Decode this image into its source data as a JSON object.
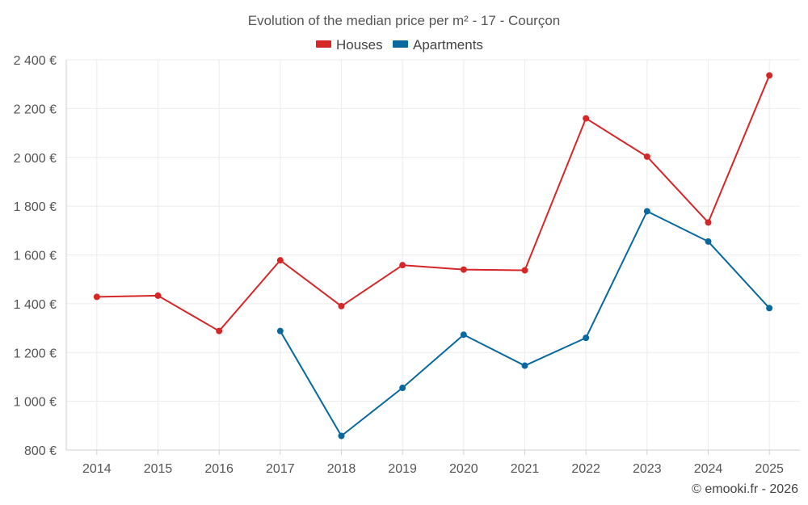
{
  "chart_data": {
    "type": "line",
    "title": "Evolution of the median price per m² - 17 - Courçon",
    "categories": [
      "2014",
      "2015",
      "2016",
      "2017",
      "2018",
      "2019",
      "2020",
      "2021",
      "2022",
      "2023",
      "2024",
      "2025"
    ],
    "ylim": [
      800,
      2400
    ],
    "yticks": [
      800,
      1000,
      1200,
      1400,
      1600,
      1800,
      2000,
      2200,
      2400
    ],
    "ytick_labels": [
      "800 €",
      "1 000 €",
      "1 200 €",
      "1 400 €",
      "1 600 €",
      "1 800 €",
      "2 000 €",
      "2 200 €",
      "2 400 €"
    ],
    "grid": true,
    "legend_position": "top-center",
    "series": [
      {
        "name": "Houses",
        "color": "#d62728",
        "values": [
          1428,
          1433,
          1288,
          1578,
          1390,
          1558,
          1540,
          1537,
          2160,
          2003,
          1733,
          2336
        ]
      },
      {
        "name": "Apartments",
        "color": "#0868a0",
        "values": [
          null,
          null,
          null,
          1288,
          858,
          1055,
          1273,
          1146,
          1260,
          1779,
          1655,
          1382
        ]
      }
    ],
    "credit": "© emooki.fr - 2026"
  }
}
